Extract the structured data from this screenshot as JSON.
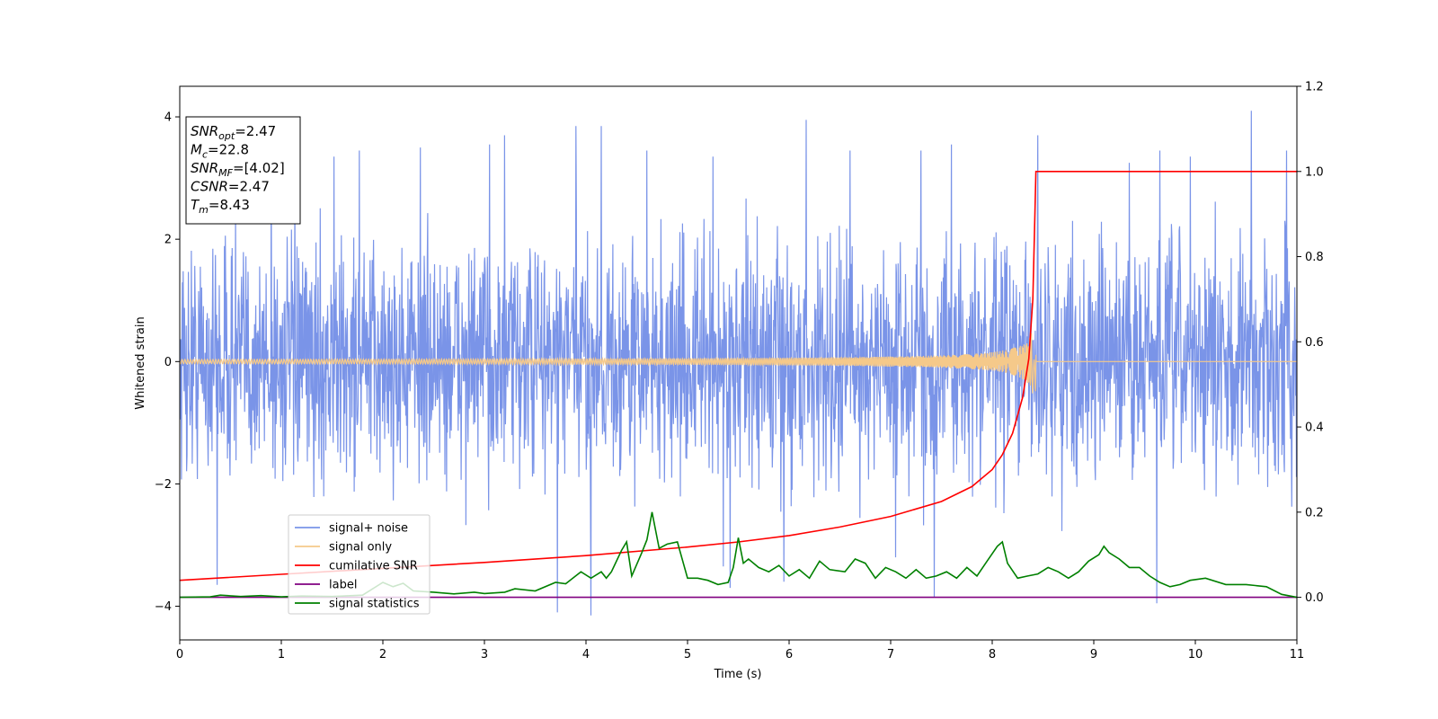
{
  "chart_data": {
    "type": "line",
    "xlabel": "Time (s)",
    "ylabel": "Whitened strain",
    "xlim": [
      0,
      11
    ],
    "ylim": [
      -4.55,
      4.5
    ],
    "y2lim": [
      -0.1,
      1.2
    ],
    "x_ticks": [
      "0",
      "1",
      "2",
      "3",
      "4",
      "5",
      "6",
      "7",
      "8",
      "9",
      "10",
      "11"
    ],
    "y_ticks": [
      "4",
      "2",
      "0",
      "−2",
      "−4"
    ],
    "y2_ticks": [
      "1.2",
      "1.0",
      "0.8",
      "0.6",
      "0.4",
      "0.2",
      "0.0"
    ],
    "grid": false,
    "legend_position": "lower-left",
    "annotation": [
      {
        "name": "SNR",
        "sub": "opt",
        "value": "=2.47"
      },
      {
        "name": "M",
        "sub": "c",
        "value": "=22.8"
      },
      {
        "name": "SNR",
        "sub": "MF",
        "value": "=[4.02]"
      },
      {
        "name": "CSNR",
        "sub": "",
        "value": "=2.47"
      },
      {
        "name": "T",
        "sub": "m",
        "value": "=8.43"
      }
    ],
    "series": [
      {
        "name": "signal+ noise",
        "color": "#7a94e8",
        "axis": "left",
        "kind": "noise",
        "extremes": [
          [
            0.37,
            -3.65
          ],
          [
            0.55,
            2.6
          ],
          [
            0.9,
            3.4
          ],
          [
            1.52,
            3.35
          ],
          [
            1.77,
            3.45
          ],
          [
            2.37,
            3.5
          ],
          [
            3.05,
            3.55
          ],
          [
            3.2,
            3.7
          ],
          [
            3.72,
            -4.1
          ],
          [
            3.9,
            3.85
          ],
          [
            4.05,
            -4.15
          ],
          [
            4.15,
            3.85
          ],
          [
            4.6,
            3.45
          ],
          [
            5.25,
            3.35
          ],
          [
            5.35,
            -3.35
          ],
          [
            5.42,
            -3.7
          ],
          [
            5.95,
            -3.6
          ],
          [
            6.17,
            3.95
          ],
          [
            6.6,
            3.45
          ],
          [
            7.05,
            -3.2
          ],
          [
            7.3,
            3.45
          ],
          [
            7.43,
            -3.85
          ],
          [
            7.6,
            3.55
          ],
          [
            8.45,
            3.7
          ],
          [
            9.35,
            3.25
          ],
          [
            9.62,
            -3.95
          ],
          [
            9.65,
            3.45
          ],
          [
            9.95,
            3.35
          ],
          [
            10.55,
            4.1
          ],
          [
            10.9,
            3.45
          ]
        ]
      },
      {
        "name": "signal only",
        "color": "#f5c98a",
        "axis": "left",
        "kind": "chirp",
        "params": {
          "t_merge": 8.43,
          "amp_max": 0.52,
          "amp_min": 0.01
        }
      },
      {
        "name": "cumilative SNR",
        "color": "#ff0000",
        "axis": "right",
        "points": [
          [
            0,
            0.04
          ],
          [
            1,
            0.054
          ],
          [
            2,
            0.068
          ],
          [
            3,
            0.082
          ],
          [
            4,
            0.098
          ],
          [
            5,
            0.118
          ],
          [
            5.5,
            0.13
          ],
          [
            6,
            0.145
          ],
          [
            6.5,
            0.165
          ],
          [
            7,
            0.19
          ],
          [
            7.5,
            0.225
          ],
          [
            7.8,
            0.26
          ],
          [
            8.0,
            0.3
          ],
          [
            8.1,
            0.335
          ],
          [
            8.2,
            0.385
          ],
          [
            8.3,
            0.47
          ],
          [
            8.36,
            0.56
          ],
          [
            8.4,
            0.7
          ],
          [
            8.42,
            0.9
          ],
          [
            8.43,
            1.0
          ],
          [
            11,
            1.0
          ]
        ]
      },
      {
        "name": "label",
        "color": "#800080",
        "axis": "right",
        "points": [
          [
            0,
            0.0
          ],
          [
            11,
            0.0
          ]
        ]
      },
      {
        "name": "signal statistics",
        "color": "#008000",
        "axis": "right",
        "points": [
          [
            0,
            0.0
          ],
          [
            0.3,
            0.001
          ],
          [
            0.4,
            0.005
          ],
          [
            0.6,
            0.002
          ],
          [
            0.8,
            0.004
          ],
          [
            1.0,
            0.001
          ],
          [
            1.2,
            0.003
          ],
          [
            1.5,
            0.002
          ],
          [
            1.8,
            0.005
          ],
          [
            2.0,
            0.035
          ],
          [
            2.1,
            0.025
          ],
          [
            2.2,
            0.033
          ],
          [
            2.3,
            0.015
          ],
          [
            2.5,
            0.012
          ],
          [
            2.7,
            0.008
          ],
          [
            2.9,
            0.012
          ],
          [
            3.0,
            0.009
          ],
          [
            3.2,
            0.012
          ],
          [
            3.3,
            0.02
          ],
          [
            3.5,
            0.015
          ],
          [
            3.7,
            0.035
          ],
          [
            3.8,
            0.032
          ],
          [
            3.95,
            0.06
          ],
          [
            4.05,
            0.045
          ],
          [
            4.15,
            0.06
          ],
          [
            4.2,
            0.045
          ],
          [
            4.25,
            0.06
          ],
          [
            4.35,
            0.11
          ],
          [
            4.4,
            0.13
          ],
          [
            4.45,
            0.05
          ],
          [
            4.55,
            0.105
          ],
          [
            4.6,
            0.135
          ],
          [
            4.65,
            0.2
          ],
          [
            4.72,
            0.115
          ],
          [
            4.8,
            0.125
          ],
          [
            4.9,
            0.13
          ],
          [
            5.0,
            0.045
          ],
          [
            5.1,
            0.045
          ],
          [
            5.2,
            0.04
          ],
          [
            5.3,
            0.03
          ],
          [
            5.4,
            0.035
          ],
          [
            5.45,
            0.07
          ],
          [
            5.5,
            0.14
          ],
          [
            5.55,
            0.08
          ],
          [
            5.6,
            0.09
          ],
          [
            5.7,
            0.07
          ],
          [
            5.8,
            0.06
          ],
          [
            5.9,
            0.075
          ],
          [
            6.0,
            0.05
          ],
          [
            6.1,
            0.065
          ],
          [
            6.2,
            0.045
          ],
          [
            6.3,
            0.085
          ],
          [
            6.4,
            0.065
          ],
          [
            6.55,
            0.06
          ],
          [
            6.65,
            0.09
          ],
          [
            6.75,
            0.08
          ],
          [
            6.85,
            0.045
          ],
          [
            6.95,
            0.07
          ],
          [
            7.05,
            0.06
          ],
          [
            7.15,
            0.045
          ],
          [
            7.25,
            0.065
          ],
          [
            7.35,
            0.045
          ],
          [
            7.45,
            0.05
          ],
          [
            7.55,
            0.06
          ],
          [
            7.65,
            0.045
          ],
          [
            7.75,
            0.07
          ],
          [
            7.85,
            0.05
          ],
          [
            7.95,
            0.085
          ],
          [
            8.05,
            0.12
          ],
          [
            8.1,
            0.13
          ],
          [
            8.15,
            0.08
          ],
          [
            8.25,
            0.045
          ],
          [
            8.35,
            0.05
          ],
          [
            8.45,
            0.055
          ],
          [
            8.55,
            0.07
          ],
          [
            8.65,
            0.06
          ],
          [
            8.75,
            0.045
          ],
          [
            8.85,
            0.06
          ],
          [
            8.95,
            0.085
          ],
          [
            9.05,
            0.1
          ],
          [
            9.1,
            0.12
          ],
          [
            9.15,
            0.105
          ],
          [
            9.25,
            0.09
          ],
          [
            9.35,
            0.07
          ],
          [
            9.45,
            0.07
          ],
          [
            9.55,
            0.05
          ],
          [
            9.65,
            0.035
          ],
          [
            9.75,
            0.025
          ],
          [
            9.85,
            0.03
          ],
          [
            9.95,
            0.04
          ],
          [
            10.1,
            0.045
          ],
          [
            10.3,
            0.03
          ],
          [
            10.5,
            0.03
          ],
          [
            10.7,
            0.025
          ],
          [
            10.85,
            0.007
          ],
          [
            11,
            0.0
          ]
        ]
      }
    ]
  }
}
